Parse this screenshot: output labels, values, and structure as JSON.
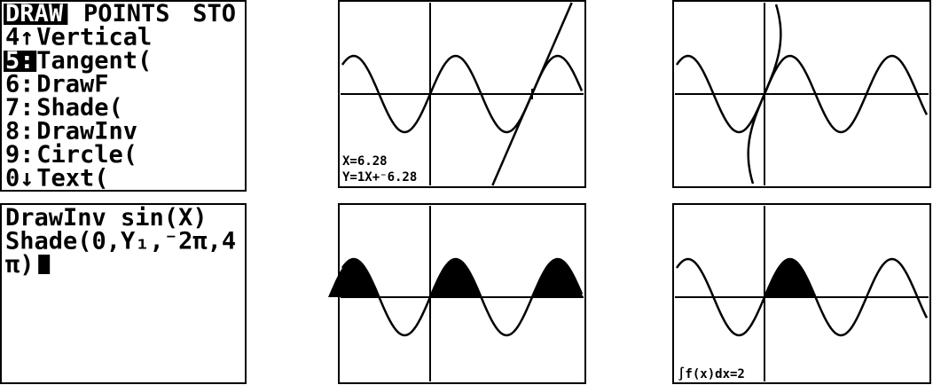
{
  "menu": {
    "tabs": [
      "DRAW",
      "POINTS",
      "STO"
    ],
    "items": [
      {
        "key": "4↑",
        "label": "Vertical"
      },
      {
        "key": "5:",
        "label": "Tangent("
      },
      {
        "key": "6:",
        "label": "DrawF"
      },
      {
        "key": "7:",
        "label": "Shade("
      },
      {
        "key": "8:",
        "label": "DrawInv"
      },
      {
        "key": "9:",
        "label": "Circle("
      },
      {
        "key": "0↓",
        "label": "Text("
      }
    ]
  },
  "tangent": {
    "x_label": "X=6.28",
    "equation": "Y=1X+⁻6.28"
  },
  "home": {
    "lines": [
      "DrawInv sin(X)",
      "Shade(0,Y₁,⁻2π,4",
      "π)"
    ]
  },
  "integral": {
    "result": "∫f(x)dx=2"
  }
}
